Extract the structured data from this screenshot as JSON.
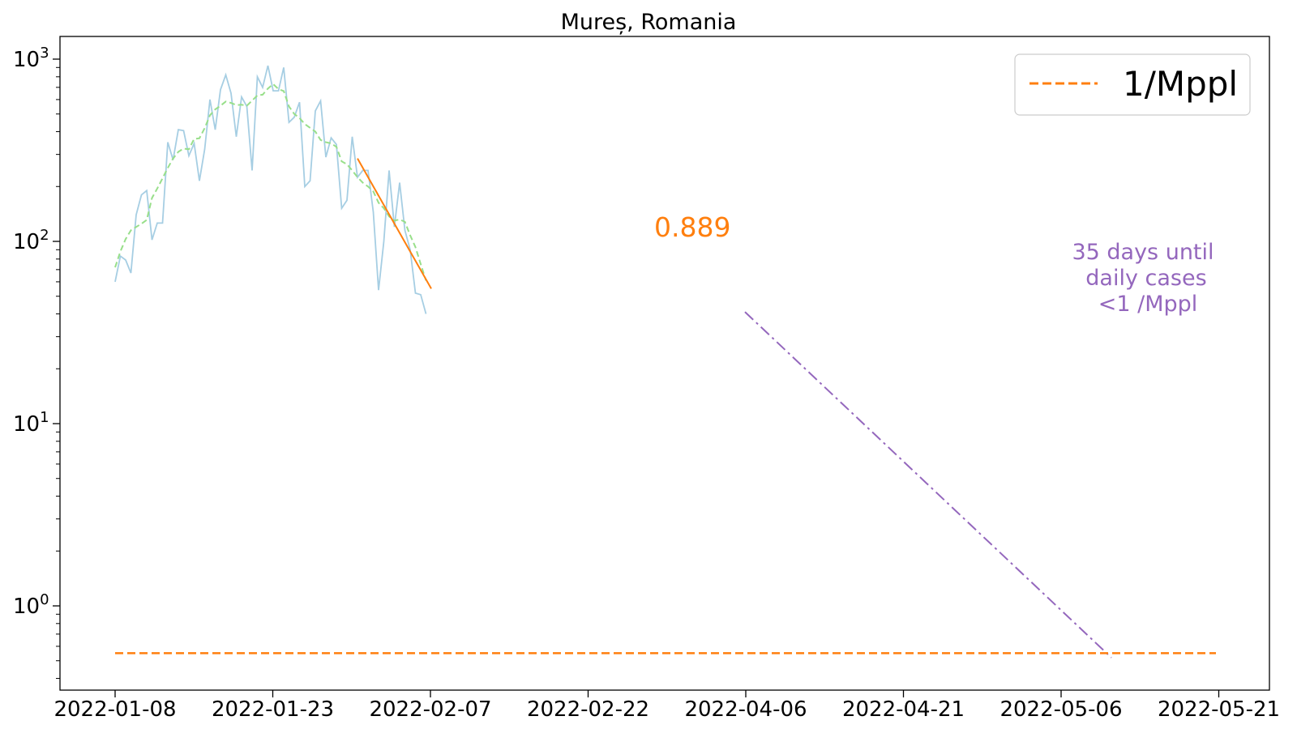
{
  "chart_data": {
    "type": "line",
    "title": "Mureș, Romania",
    "xlabel": "",
    "ylabel": "",
    "x_ticks": [
      "2022-01-08",
      "2022-01-23",
      "2022-02-07",
      "2022-02-22",
      "2022-04-06",
      "2022-04-21",
      "2022-05-06",
      "2022-05-21"
    ],
    "y_scale": "log",
    "ylim": [
      0.37,
      1300
    ],
    "y_ticks": [
      {
        "value": 1,
        "base": "10",
        "exp": "0"
      },
      {
        "value": 10,
        "base": "10",
        "exp": "1"
      },
      {
        "value": 100,
        "base": "10",
        "exp": "2"
      },
      {
        "value": 1000,
        "base": "10",
        "exp": "3"
      }
    ],
    "grid": false,
    "legend_position": "top-right",
    "legend": [
      {
        "label": "1/Mppl",
        "color": "#ff7f0e",
        "style": "dashed"
      }
    ],
    "series": [
      {
        "style": "solid",
        "color": "#a6cee3",
        "values": [
          60,
          83,
          79,
          67,
          140,
          180,
          190,
          102,
          126,
          126,
          350,
          280,
          410,
          405,
          295,
          345,
          215,
          320,
          600,
          410,
          680,
          820,
          650,
          375,
          620,
          550,
          245,
          800,
          700,
          920,
          670,
          670,
          900,
          450,
          480,
          580,
          200,
          215,
          520,
          590,
          290,
          370,
          340,
          152,
          168,
          375,
          225,
          245,
          245,
          145,
          54,
          100,
          245,
          120,
          210,
          115,
          90,
          52,
          51,
          40
        ]
      },
      {
        "style": "dashed",
        "color": "#98df8a",
        "values": [
          72,
          88,
          103,
          115,
          120,
          125,
          131,
          173,
          195,
          222,
          253,
          285,
          310,
          323,
          320,
          365,
          368,
          418,
          492,
          530,
          555,
          585,
          575,
          560,
          562,
          555,
          592,
          632,
          638,
          690,
          730,
          685,
          668,
          550,
          500,
          475,
          440,
          420,
          400,
          360,
          350,
          345,
          330,
          275,
          265,
          245,
          225,
          210,
          200,
          188,
          163,
          152,
          137,
          130,
          132,
          128,
          108,
          93,
          75,
          61
        ]
      }
    ],
    "fit_line": {
      "color": "#ff7f0e",
      "start_index": 46,
      "end_index": 60,
      "start_value": 285,
      "end_value": 55,
      "label": "0.889"
    },
    "projection": {
      "color": "#9467bd",
      "start_value": 41,
      "end_value": 0.52,
      "days_until": 35
    },
    "threshold": {
      "color": "#ff7f0e",
      "value": 0.55
    },
    "annotation": {
      "color": "#9467bd",
      "lines": [
        "35 days until",
        "daily cases",
        "<1 /Mppl"
      ]
    }
  }
}
